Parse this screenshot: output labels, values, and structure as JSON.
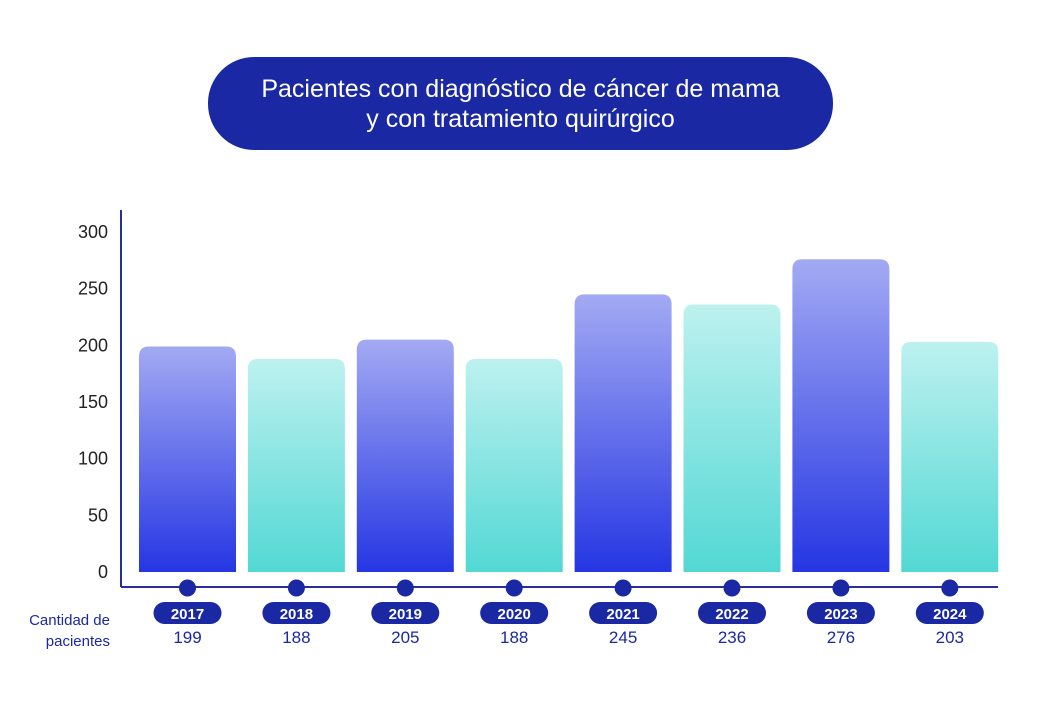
{
  "chart_data": {
    "type": "bar",
    "title": "Pacientes con diagnóstico de cáncer de mama y con tratamiento quirúrgico",
    "categories": [
      "2017",
      "2018",
      "2019",
      "2020",
      "2021",
      "2022",
      "2023",
      "2024"
    ],
    "values": [
      199,
      188,
      205,
      188,
      245,
      236,
      276,
      203
    ],
    "row_label": "Cantidad de pacientes",
    "y_ticks": [
      0,
      50,
      100,
      150,
      200,
      250,
      300
    ],
    "ylim": [
      0,
      300
    ],
    "grid": false,
    "legend": "none",
    "colors": {
      "blue_top": "#a3aaf3",
      "blue_bottom": "#2536e3",
      "teal_top": "#bdf1ef",
      "teal_bottom": "#52d8d4",
      "accent": "#1a28a3",
      "axis": "#2a2e9c"
    },
    "bar_color_pattern": [
      "blue",
      "teal",
      "blue",
      "teal",
      "blue",
      "teal",
      "blue",
      "teal"
    ]
  }
}
